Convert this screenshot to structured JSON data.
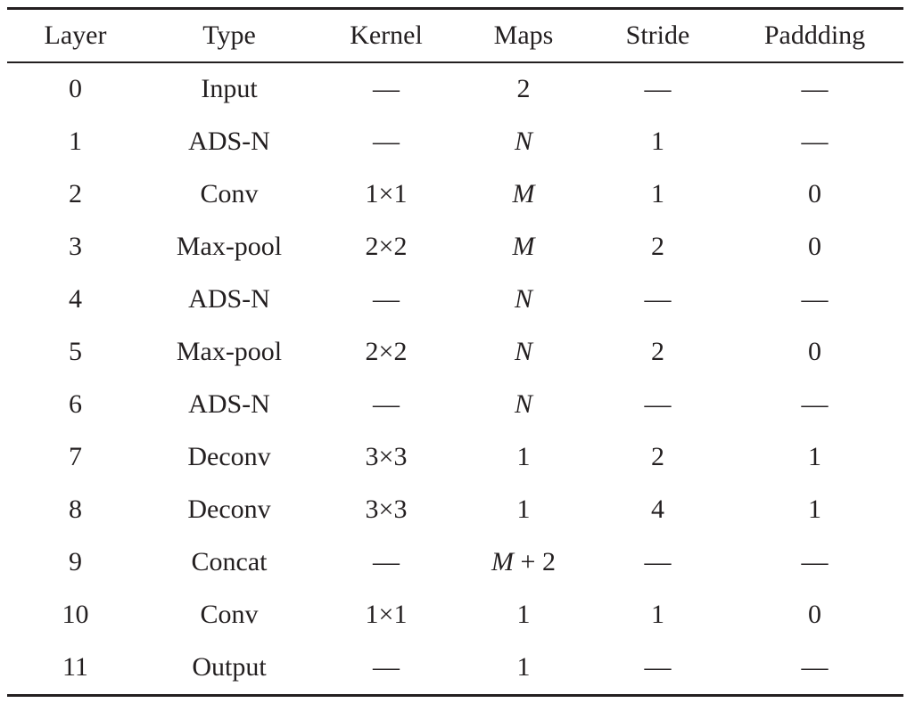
{
  "table": {
    "headers": [
      "Layer",
      "Type",
      "Kernel",
      "Maps",
      "Stride",
      "Paddding"
    ],
    "rows": [
      [
        "0",
        "Input",
        "—",
        "2",
        "—",
        "—"
      ],
      [
        "1",
        "ADS-N",
        "—",
        "N",
        "1",
        "—"
      ],
      [
        "2",
        "Conv",
        "1×1",
        "M",
        "1",
        "0"
      ],
      [
        "3",
        "Max-pool",
        "2×2",
        "M",
        "2",
        "0"
      ],
      [
        "4",
        "ADS-N",
        "—",
        "N",
        "—",
        "—"
      ],
      [
        "5",
        "Max-pool",
        "2×2",
        "N",
        "2",
        "0"
      ],
      [
        "6",
        "ADS-N",
        "—",
        "N",
        "—",
        "—"
      ],
      [
        "7",
        "Deconv",
        "3×3",
        "1",
        "2",
        "1"
      ],
      [
        "8",
        "Deconv",
        "3×3",
        "1",
        "4",
        "1"
      ],
      [
        "9",
        "Concat",
        "—",
        "M + 2",
        "—",
        "—"
      ],
      [
        "10",
        "Conv",
        "1×1",
        "1",
        "1",
        "0"
      ],
      [
        "11",
        "Output",
        "—",
        "1",
        "—",
        "—"
      ]
    ]
  }
}
